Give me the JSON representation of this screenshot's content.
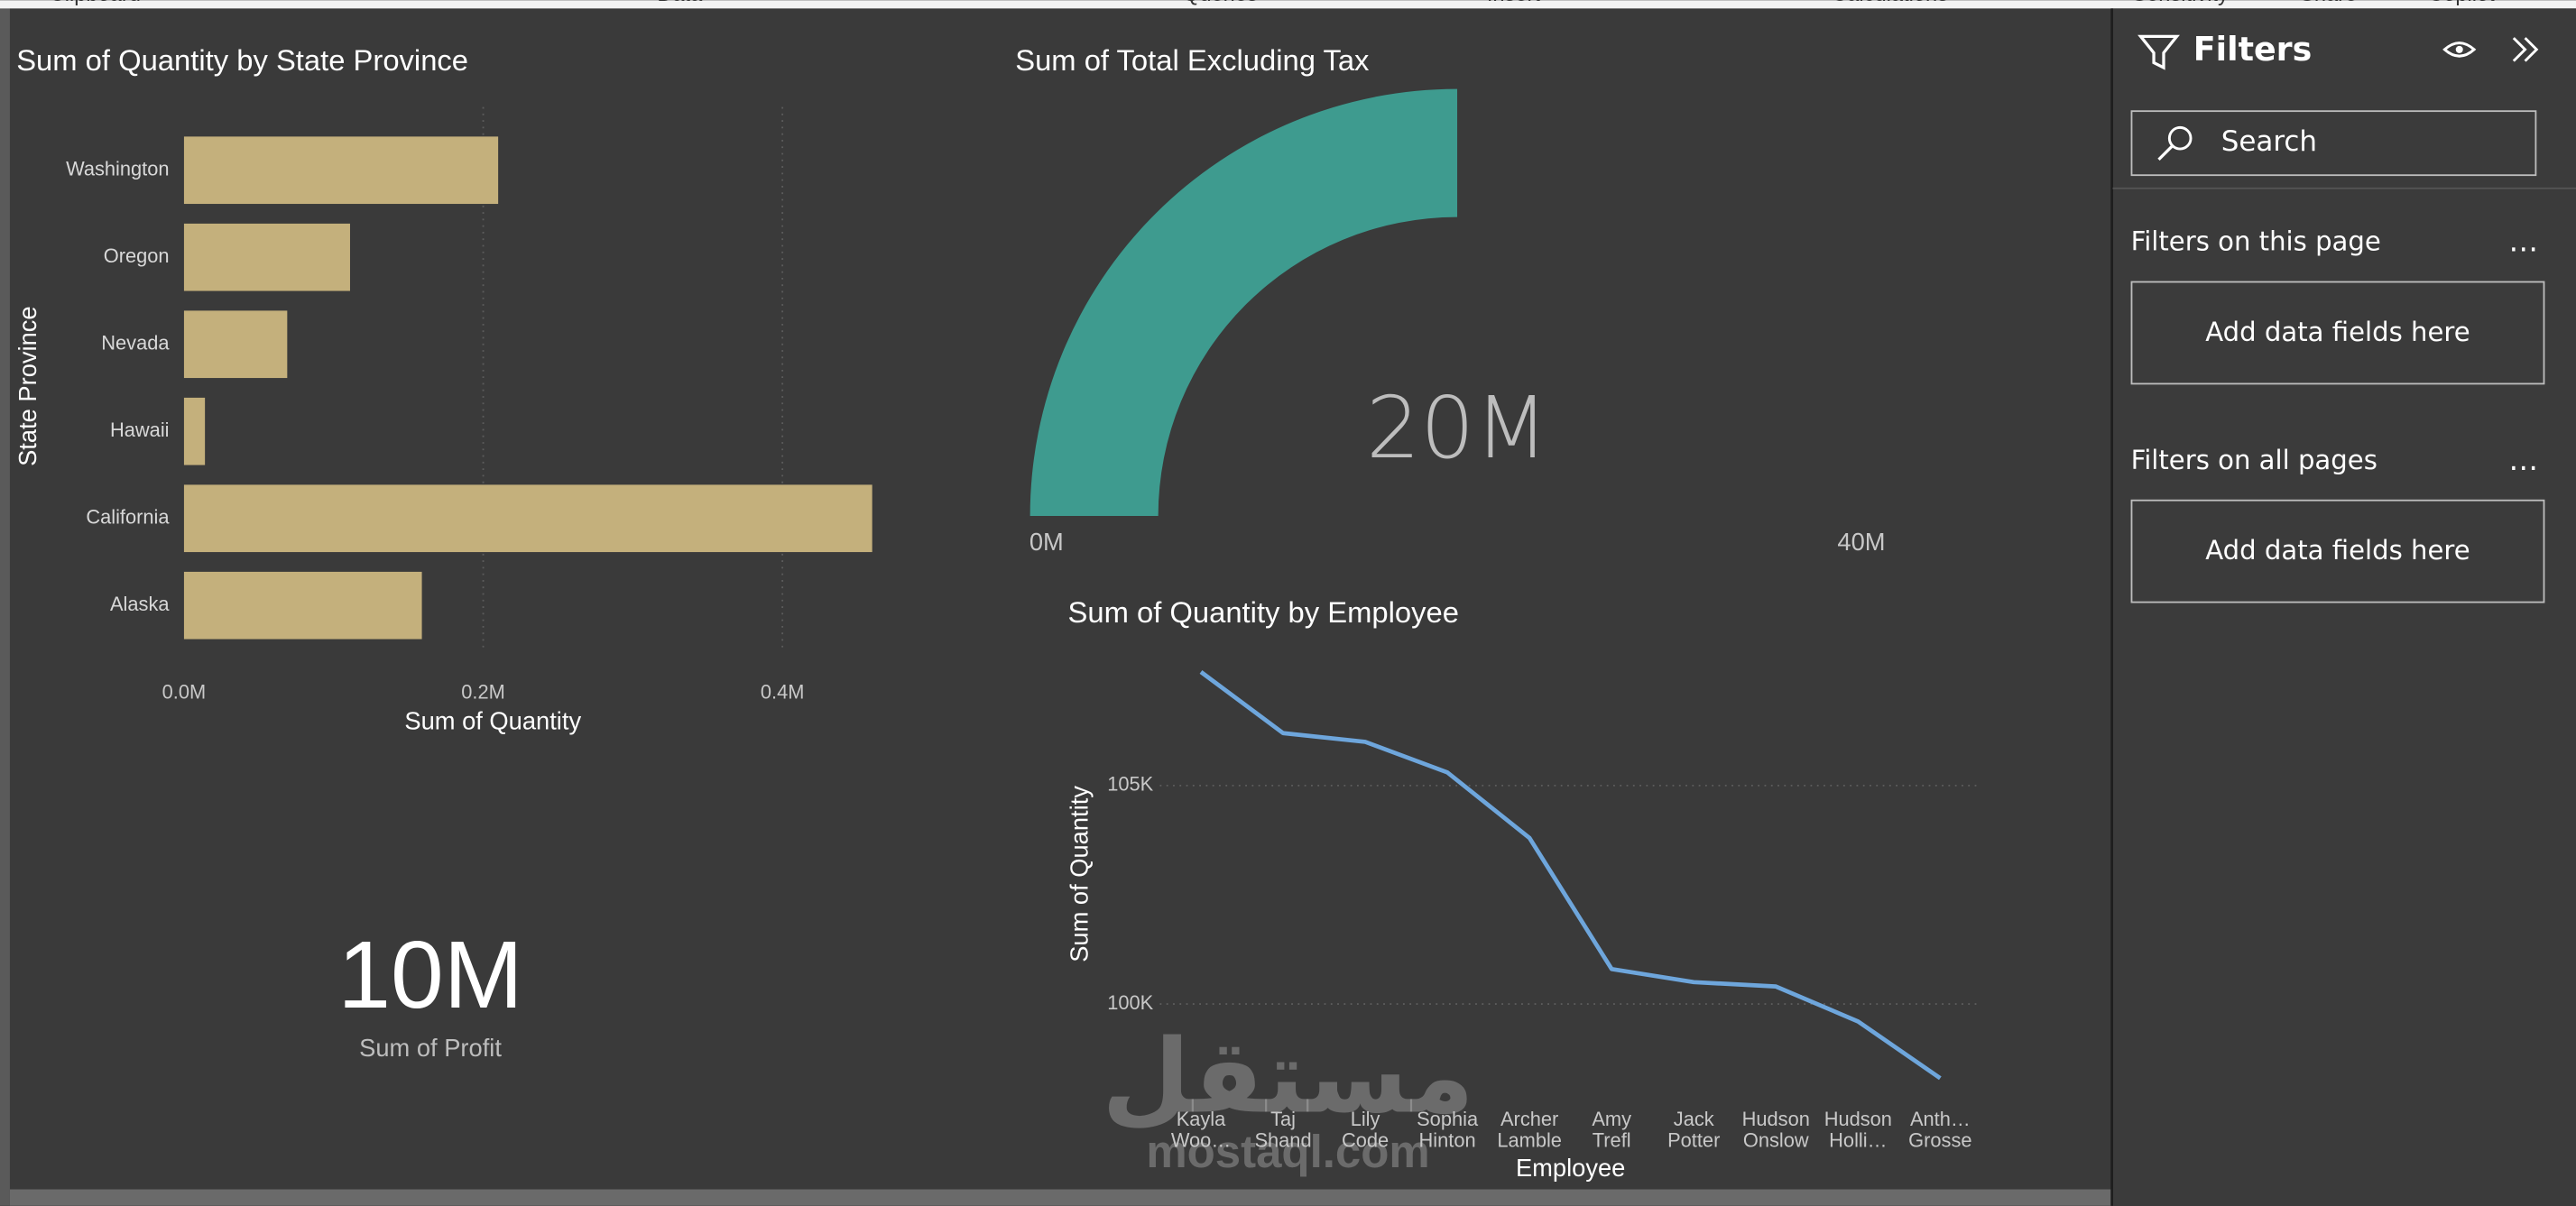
{
  "ribbon": [
    "Clipboard",
    "Data",
    "Queries",
    "Insert",
    "Calculations",
    "Sensitivity",
    "Share",
    "Copilot"
  ],
  "chart_data": [
    {
      "type": "bar",
      "title": "Sum of Quantity by State Province",
      "x_label": "Sum of Quantity",
      "y_label": "State Province",
      "categories": [
        "Washington",
        "Oregon",
        "Nevada",
        "Hawaii",
        "California",
        "Alaska"
      ],
      "values": [
        210000,
        111000,
        69000,
        14000,
        460000,
        159000
      ],
      "color": "#c4b07c",
      "xlim": [
        0,
        470000
      ],
      "xticks": [
        {
          "value": 0,
          "label": "0.0M"
        },
        {
          "value": 200000,
          "label": "0.2M"
        },
        {
          "value": 400000,
          "label": "0.4M"
        }
      ],
      "grid": true
    },
    {
      "type": "gauge",
      "title": "Sum of Total Excluding Tax",
      "value": 20000000,
      "value_label": "20M",
      "ylim": [
        0,
        40000000
      ],
      "yticks": [
        {
          "value": 0,
          "label": "0M"
        },
        {
          "value": 40000000,
          "label": "40M"
        }
      ],
      "color": "#3e9b8f"
    },
    {
      "type": "card",
      "value": 10000000,
      "value_label": "10M",
      "label": "Sum of Profit"
    },
    {
      "type": "line",
      "title": "Sum of Quantity by Employee",
      "x_label": "Employee",
      "y_label": "Sum of Quantity",
      "categories": [
        "Kayla Woo…",
        "Taj Shand",
        "Lily Code",
        "Sophia Hinton",
        "Archer Lamble",
        "Amy Trefl",
        "Jack Potter",
        "Hudson Onslow",
        "Hudson Holli…",
        "Anth… Grosse"
      ],
      "values": [
        107600,
        106200,
        106000,
        105300,
        103800,
        100800,
        100500,
        100400,
        99600,
        98300
      ],
      "color": "#6ea6dc",
      "ylim": [
        97900,
        107900
      ],
      "yticks": [
        {
          "value": 100000,
          "label": "100K"
        },
        {
          "value": 105000,
          "label": "105K"
        }
      ],
      "grid": true
    }
  ],
  "filters_pane": {
    "title": "Filters",
    "search_placeholder": "Search",
    "sections": [
      {
        "title": "Filters on this page",
        "more": "…",
        "drop_zone": "Add data fields here"
      },
      {
        "title": "Filters on all pages",
        "more": "…",
        "drop_zone": "Add data fields here"
      }
    ]
  },
  "watermark": {
    "arabic": "مستقل",
    "latin": "mostaql.com"
  }
}
